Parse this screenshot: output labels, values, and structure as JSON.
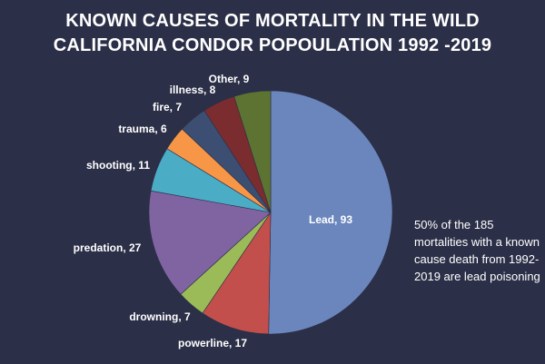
{
  "chart_data": {
    "type": "pie",
    "title_lines": [
      "KNOWN CAUSES OF MORTALITY IN THE WILD",
      "CALIFORNIA CONDOR POPOULATION 1992 -2019"
    ],
    "slices": [
      {
        "label": "Lead",
        "value": 93,
        "color": "#6a86bd",
        "label_text": "Lead, 93"
      },
      {
        "label": "powerline",
        "value": 17,
        "color": "#c24f4b",
        "label_text": "powerline, 17"
      },
      {
        "label": "drowning",
        "value": 7,
        "color": "#9bbb59",
        "label_text": "drowning, 7"
      },
      {
        "label": "predation",
        "value": 27,
        "color": "#8064a2",
        "label_text": "predation, 27"
      },
      {
        "label": "shooting",
        "value": 11,
        "color": "#4bacc6",
        "label_text": "shooting, 11"
      },
      {
        "label": "trauma",
        "value": 6,
        "color": "#f79646",
        "label_text": "trauma, 6"
      },
      {
        "label": "fire",
        "value": 7,
        "color": "#3c4f72",
        "label_text": "fire, 7"
      },
      {
        "label": "illness",
        "value": 8,
        "color": "#7b2c2e",
        "label_text": "illness, 8"
      },
      {
        "label": "Other",
        "value": 9,
        "color": "#5c7332",
        "label_text": "Other, 9"
      }
    ],
    "annotation": "50% of the 185 mortalities with a known cause death from 1992-2019 are lead poisoning"
  }
}
